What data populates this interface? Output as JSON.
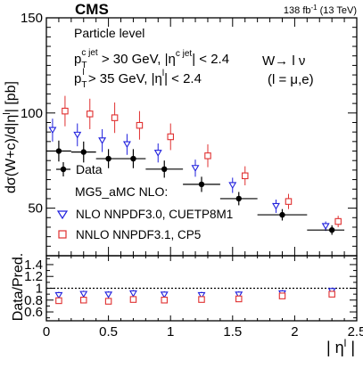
{
  "chart_data": {
    "type": "scatter",
    "experiment": "CMS",
    "lumi_label": "138 fb",
    "lumi_sup": "-1",
    "energy_label": "(13 TeV)",
    "upper": {
      "ylabel": "dσ(W+c)/d|η",
      "ylabel_sup": "l",
      "ylabel_unit": "| [pb]",
      "ylim": [
        25,
        150
      ],
      "yticks": [
        "50",
        "100",
        "150"
      ],
      "ytick_values": [
        50,
        100,
        150
      ]
    },
    "lower": {
      "ylabel": "Data/Pred.",
      "ylim": [
        0.45,
        1.55
      ],
      "yticks": [
        "0.6",
        "0.8",
        "1",
        "1.2",
        "1.4"
      ],
      "ytick_values": [
        0.6,
        0.8,
        1.0,
        1.2,
        1.4
      ],
      "reference_line": 1.0
    },
    "xlim": [
      0,
      2.5
    ],
    "xticks": [
      "0",
      "0.5",
      "1",
      "1.5",
      "2",
      "2.5"
    ],
    "xtick_values": [
      0,
      0.5,
      1.0,
      1.5,
      2.0,
      2.5
    ],
    "xlabel": "| η",
    "xlabel_sup": "l",
    "xlabel_end": " |",
    "annotations": {
      "particle_level": "Particle level",
      "cut1_a": "p",
      "cut1_b": "T",
      "cut1_c": "c jet",
      "cut1_d": " > 30 GeV, |η",
      "cut1_e": "c jet",
      "cut1_f": "| < 2.4",
      "cut2_a": "p",
      "cut2_b": "T",
      "cut2_c": "l",
      "cut2_d": " > 35 GeV, |η",
      "cut2_e": "l",
      "cut2_f": "| < 2.4",
      "process": "W→ l ν",
      "lepton": "(l = μ,e)"
    },
    "legend": {
      "data": "Data",
      "generator": "MG5_aMC NLO:",
      "nlo": "NLO NNPDF3.0, CUETP8M1",
      "nnlo": "NNLO NNPDF3.1, CP5"
    },
    "bins": [
      {
        "lo": 0.0,
        "hi": 0.2,
        "x": 0.1
      },
      {
        "lo": 0.2,
        "hi": 0.4,
        "x": 0.3
      },
      {
        "lo": 0.4,
        "hi": 0.6,
        "x": 0.5
      },
      {
        "lo": 0.6,
        "hi": 0.8,
        "x": 0.7
      },
      {
        "lo": 0.8,
        "hi": 1.1,
        "x": 0.95
      },
      {
        "lo": 1.1,
        "hi": 1.4,
        "x": 1.25
      },
      {
        "lo": 1.4,
        "hi": 1.7,
        "x": 1.55
      },
      {
        "lo": 1.7,
        "hi": 2.1,
        "x": 1.9
      },
      {
        "lo": 2.1,
        "hi": 2.4,
        "x": 2.3
      }
    ],
    "series": [
      {
        "name": "Data",
        "values": [
          80,
          79.5,
          76,
          76,
          70.5,
          62.5,
          55,
          46.5,
          38.5
        ],
        "err_total": [
          5.5,
          5.5,
          5,
          5,
          4.5,
          4,
          3.5,
          3,
          2.5
        ]
      },
      {
        "name": "NLO NNPDF3.0, CUETP8M1",
        "values": [
          91,
          88.5,
          85.5,
          83.5,
          79,
          71,
          62,
          51,
          40.5
        ],
        "err": [
          6,
          6,
          6,
          5.5,
          5,
          4.5,
          4,
          3.5,
          2.5
        ],
        "ratio": [
          0.88,
          0.9,
          0.89,
          0.91,
          0.89,
          0.88,
          0.89,
          0.91,
          0.95
        ],
        "ratio_err": [
          0.06,
          0.06,
          0.06,
          0.06,
          0.06,
          0.06,
          0.06,
          0.06,
          0.06
        ]
      },
      {
        "name": "NNLO NNPDF3.1, CP5",
        "values": [
          101,
          99.5,
          97.5,
          93.5,
          87.5,
          77.5,
          67,
          53.5,
          43
        ],
        "err": [
          8,
          8,
          8,
          7.5,
          7,
          6,
          5,
          4,
          3
        ],
        "ratio": [
          0.79,
          0.8,
          0.78,
          0.81,
          0.8,
          0.81,
          0.82,
          0.87,
          0.9
        ],
        "ratio_err": [
          0.05,
          0.05,
          0.05,
          0.05,
          0.05,
          0.05,
          0.05,
          0.05,
          0.05
        ]
      }
    ],
    "colors": {
      "data": "#000000",
      "nlo": "#1f1fdd",
      "nnlo": "#e03030"
    }
  }
}
